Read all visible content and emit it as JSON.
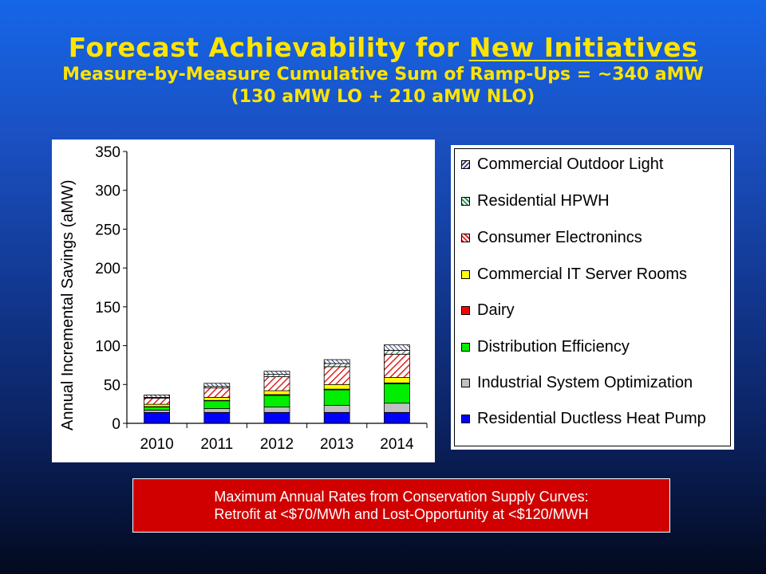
{
  "header": {
    "title_prefix": "Forecast Achievability for",
    "title_underlined": "New Initiatives",
    "subtitle": "Measure-by-Measure Cumulative Sum of Ramp-Ups = ~340 aMW",
    "subtitle2": "(130 aMW LO + 210 aMW NLO)"
  },
  "chart_data": {
    "type": "bar",
    "stacked": true,
    "title": "",
    "xlabel": "",
    "ylabel": "Annual Incremental Savings (aMW)",
    "ylim": [
      0,
      350
    ],
    "yticks": [
      0,
      50,
      100,
      150,
      200,
      250,
      300,
      350
    ],
    "grid": false,
    "legend_position": "right",
    "categories": [
      "2010",
      "2011",
      "2012",
      "2013",
      "2014"
    ],
    "series": [
      {
        "name": "Residential Ductless Heat Pump",
        "color": "#0000ff",
        "pattern": "solid",
        "values": [
          14,
          14,
          14,
          14,
          14
        ]
      },
      {
        "name": "Industrial System Optimization",
        "color": "#c0c0c0",
        "pattern": "solid",
        "values": [
          3,
          5,
          7,
          9,
          12
        ]
      },
      {
        "name": "Distribution Efficiency",
        "color": "#00ee00",
        "pattern": "solid",
        "values": [
          4,
          10,
          15,
          20,
          25
        ]
      },
      {
        "name": "Dairy",
        "color": "#ff0000",
        "pattern": "solid",
        "values": [
          0.5,
          0.5,
          1,
          1,
          1
        ]
      },
      {
        "name": "Commercial IT Server Rooms",
        "color": "#ffff00",
        "pattern": "solid",
        "values": [
          3,
          4,
          5,
          6,
          7
        ]
      },
      {
        "name": "Consumer Electronincs",
        "color": "#e02020",
        "pattern": "hatch",
        "values": [
          8,
          12,
          18,
          23,
          30
        ]
      },
      {
        "name": "Residential HPWH",
        "color": "#2e8b57",
        "pattern": "hatch",
        "values": [
          1,
          2,
          3,
          4,
          5
        ]
      },
      {
        "name": "Commercial Outdoor Light",
        "color": "#404080",
        "pattern": "hatch",
        "values": [
          3,
          4,
          4,
          5,
          7
        ]
      }
    ]
  },
  "legend_items": [
    "Commercial Outdoor Light",
    "Residential HPWH",
    "Consumer Electronincs",
    "Commercial IT Server Rooms",
    "Dairy",
    "Distribution Efficiency",
    "Industrial System Optimization",
    "Residential Ductless Heat Pump"
  ],
  "note": {
    "line1": "Maximum Annual Rates from Conservation Supply Curves:",
    "line2": "Retrofit at <$70/MWh and Lost-Opportunity at <$120/MWH"
  }
}
